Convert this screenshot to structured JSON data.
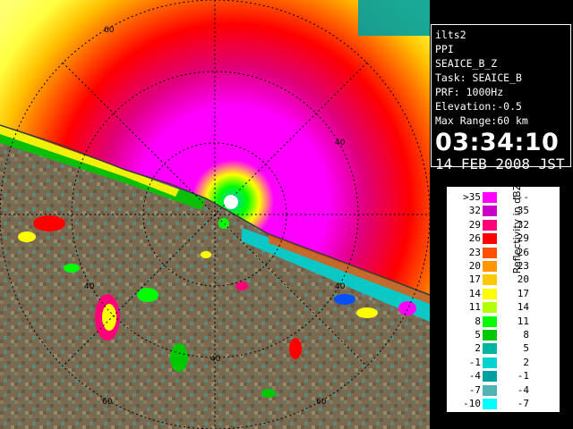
{
  "info": {
    "lines": [
      "ilts2",
      "PPI",
      "SEAICE_B_Z",
      "Task: SEAICE_B",
      "PRF: 1000Hz",
      "Elevation:-0.5",
      "Max Range:60 km"
    ],
    "time": "03:34:10",
    "date": "14 FEB 2008 JST"
  },
  "range_labels": [
    "60",
    "40",
    "40",
    "40",
    "40",
    "60",
    "60"
  ],
  "legend": {
    "title": "Reflectivity in dBZ",
    "rows": [
      {
        "lo": ">35",
        "hi": "---",
        "color": "#ff00ff"
      },
      {
        "lo": "32",
        "hi": "35",
        "color": "#c800c8"
      },
      {
        "lo": "29",
        "hi": "32",
        "color": "#ff0078"
      },
      {
        "lo": "26",
        "hi": "29",
        "color": "#ff0000"
      },
      {
        "lo": "23",
        "hi": "26",
        "color": "#ff5000"
      },
      {
        "lo": "20",
        "hi": "23",
        "color": "#ff9600"
      },
      {
        "lo": "17",
        "hi": "20",
        "color": "#ffc800"
      },
      {
        "lo": "14",
        "hi": "17",
        "color": "#ffff00"
      },
      {
        "lo": "11",
        "hi": "14",
        "color": "#b4ff00"
      },
      {
        "lo": "8",
        "hi": "11",
        "color": "#00ff00"
      },
      {
        "lo": "5",
        "hi": "8",
        "color": "#00c800"
      },
      {
        "lo": "2",
        "hi": "5",
        "color": "#00b4a0"
      },
      {
        "lo": "-1",
        "hi": "2",
        "color": "#00d2d2"
      },
      {
        "lo": "-4",
        "hi": "-1",
        "color": "#00a0a0"
      },
      {
        "lo": "-7",
        "hi": "-4",
        "color": "#50b4b4"
      },
      {
        "lo": "-10",
        "hi": "-7",
        "color": "#00ffff"
      }
    ]
  }
}
